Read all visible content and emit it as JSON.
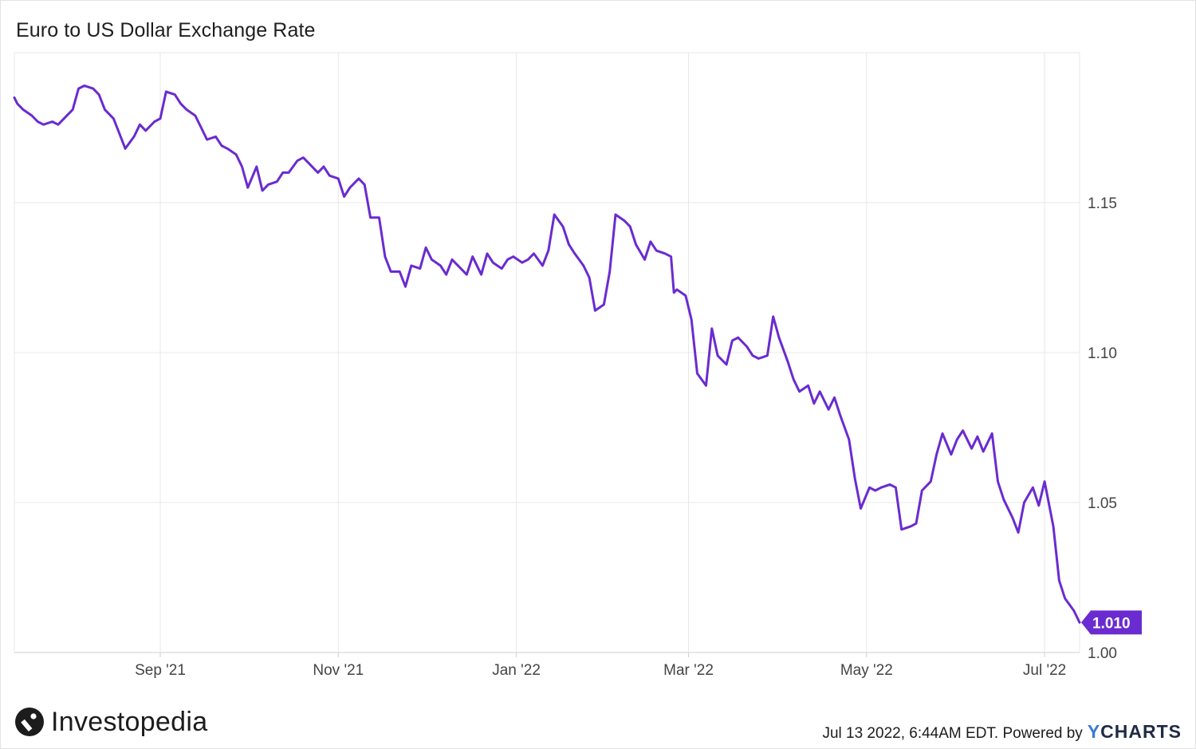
{
  "chart_data": {
    "type": "line",
    "title": "Euro to US Dollar Exchange Rate",
    "xlabel": "",
    "ylabel": "",
    "x_range": [
      "2021-07-13",
      "2022-07-13"
    ],
    "ylim": [
      1.0,
      1.2
    ],
    "grid": true,
    "line_color": "#6a2bd0",
    "x_ticks": [
      {
        "label": "Sep '21",
        "date": "2021-09-01"
      },
      {
        "label": "Nov '21",
        "date": "2021-11-01"
      },
      {
        "label": "Jan '22",
        "date": "2022-01-01"
      },
      {
        "label": "Mar '22",
        "date": "2022-03-01"
      },
      {
        "label": "May '22",
        "date": "2022-05-01"
      },
      {
        "label": "Jul '22",
        "date": "2022-07-01"
      }
    ],
    "y_ticks": [
      {
        "label": "1.00",
        "value": 1.0
      },
      {
        "label": "1.05",
        "value": 1.05
      },
      {
        "label": "1.10",
        "value": 1.1
      },
      {
        "label": "1.15",
        "value": 1.15
      }
    ],
    "last_value_label": "1.010",
    "series": [
      {
        "points": [
          [
            "2021-07-13",
            1.185
          ],
          [
            "2021-07-14",
            1.183
          ],
          [
            "2021-07-16",
            1.181
          ],
          [
            "2021-07-19",
            1.179
          ],
          [
            "2021-07-21",
            1.177
          ],
          [
            "2021-07-23",
            1.176
          ],
          [
            "2021-07-26",
            1.177
          ],
          [
            "2021-07-28",
            1.176
          ],
          [
            "2021-07-30",
            1.178
          ],
          [
            "2021-08-02",
            1.181
          ],
          [
            "2021-08-04",
            1.188
          ],
          [
            "2021-08-06",
            1.189
          ],
          [
            "2021-08-09",
            1.188
          ],
          [
            "2021-08-11",
            1.186
          ],
          [
            "2021-08-13",
            1.181
          ],
          [
            "2021-08-16",
            1.178
          ],
          [
            "2021-08-18",
            1.173
          ],
          [
            "2021-08-20",
            1.168
          ],
          [
            "2021-08-23",
            1.172
          ],
          [
            "2021-08-25",
            1.176
          ],
          [
            "2021-08-27",
            1.174
          ],
          [
            "2021-08-30",
            1.177
          ],
          [
            "2021-09-01",
            1.178
          ],
          [
            "2021-09-03",
            1.187
          ],
          [
            "2021-09-06",
            1.186
          ],
          [
            "2021-09-08",
            1.183
          ],
          [
            "2021-09-10",
            1.181
          ],
          [
            "2021-09-13",
            1.179
          ],
          [
            "2021-09-15",
            1.175
          ],
          [
            "2021-09-17",
            1.171
          ],
          [
            "2021-09-20",
            1.172
          ],
          [
            "2021-09-22",
            1.169
          ],
          [
            "2021-09-24",
            1.168
          ],
          [
            "2021-09-27",
            1.166
          ],
          [
            "2021-09-29",
            1.162
          ],
          [
            "2021-10-01",
            1.155
          ],
          [
            "2021-10-04",
            1.162
          ],
          [
            "2021-10-06",
            1.154
          ],
          [
            "2021-10-08",
            1.156
          ],
          [
            "2021-10-11",
            1.157
          ],
          [
            "2021-10-13",
            1.16
          ],
          [
            "2021-10-15",
            1.16
          ],
          [
            "2021-10-18",
            1.164
          ],
          [
            "2021-10-20",
            1.165
          ],
          [
            "2021-10-22",
            1.163
          ],
          [
            "2021-10-25",
            1.16
          ],
          [
            "2021-10-27",
            1.162
          ],
          [
            "2021-10-29",
            1.159
          ],
          [
            "2021-11-01",
            1.158
          ],
          [
            "2021-11-03",
            1.152
          ],
          [
            "2021-11-05",
            1.155
          ],
          [
            "2021-11-08",
            1.158
          ],
          [
            "2021-11-10",
            1.156
          ],
          [
            "2021-11-12",
            1.145
          ],
          [
            "2021-11-15",
            1.145
          ],
          [
            "2021-11-17",
            1.132
          ],
          [
            "2021-11-19",
            1.127
          ],
          [
            "2021-11-22",
            1.127
          ],
          [
            "2021-11-24",
            1.122
          ],
          [
            "2021-11-26",
            1.129
          ],
          [
            "2021-11-29",
            1.128
          ],
          [
            "2021-12-01",
            1.135
          ],
          [
            "2021-12-03",
            1.131
          ],
          [
            "2021-12-06",
            1.129
          ],
          [
            "2021-12-08",
            1.126
          ],
          [
            "2021-12-10",
            1.131
          ],
          [
            "2021-12-13",
            1.128
          ],
          [
            "2021-12-15",
            1.126
          ],
          [
            "2021-12-17",
            1.132
          ],
          [
            "2021-12-20",
            1.126
          ],
          [
            "2021-12-22",
            1.133
          ],
          [
            "2021-12-24",
            1.13
          ],
          [
            "2021-12-27",
            1.128
          ],
          [
            "2021-12-29",
            1.131
          ],
          [
            "2021-12-31",
            1.132
          ],
          [
            "2022-01-03",
            1.13
          ],
          [
            "2022-01-05",
            1.131
          ],
          [
            "2022-01-07",
            1.133
          ],
          [
            "2022-01-10",
            1.129
          ],
          [
            "2022-01-12",
            1.134
          ],
          [
            "2022-01-14",
            1.146
          ],
          [
            "2022-01-17",
            1.142
          ],
          [
            "2022-01-19",
            1.136
          ],
          [
            "2022-01-21",
            1.133
          ],
          [
            "2022-01-24",
            1.129
          ],
          [
            "2022-01-26",
            1.125
          ],
          [
            "2022-01-28",
            1.114
          ],
          [
            "2022-01-31",
            1.116
          ],
          [
            "2022-02-02",
            1.127
          ],
          [
            "2022-02-04",
            1.146
          ],
          [
            "2022-02-07",
            1.144
          ],
          [
            "2022-02-09",
            1.142
          ],
          [
            "2022-02-11",
            1.136
          ],
          [
            "2022-02-14",
            1.131
          ],
          [
            "2022-02-16",
            1.137
          ],
          [
            "2022-02-18",
            1.134
          ],
          [
            "2022-02-21",
            1.133
          ],
          [
            "2022-02-23",
            1.132
          ],
          [
            "2022-02-24",
            1.12
          ],
          [
            "2022-02-25",
            1.121
          ],
          [
            "2022-02-28",
            1.119
          ],
          [
            "2022-03-02",
            1.111
          ],
          [
            "2022-03-04",
            1.093
          ],
          [
            "2022-03-07",
            1.089
          ],
          [
            "2022-03-09",
            1.108
          ],
          [
            "2022-03-11",
            1.099
          ],
          [
            "2022-03-14",
            1.096
          ],
          [
            "2022-03-16",
            1.104
          ],
          [
            "2022-03-18",
            1.105
          ],
          [
            "2022-03-21",
            1.102
          ],
          [
            "2022-03-23",
            1.099
          ],
          [
            "2022-03-25",
            1.098
          ],
          [
            "2022-03-28",
            1.099
          ],
          [
            "2022-03-30",
            1.112
          ],
          [
            "2022-04-01",
            1.105
          ],
          [
            "2022-04-04",
            1.097
          ],
          [
            "2022-04-06",
            1.091
          ],
          [
            "2022-04-08",
            1.087
          ],
          [
            "2022-04-11",
            1.089
          ],
          [
            "2022-04-13",
            1.083
          ],
          [
            "2022-04-15",
            1.087
          ],
          [
            "2022-04-18",
            1.081
          ],
          [
            "2022-04-20",
            1.085
          ],
          [
            "2022-04-22",
            1.079
          ],
          [
            "2022-04-25",
            1.071
          ],
          [
            "2022-04-27",
            1.058
          ],
          [
            "2022-04-29",
            1.048
          ],
          [
            "2022-05-02",
            1.055
          ],
          [
            "2022-05-04",
            1.054
          ],
          [
            "2022-05-06",
            1.055
          ],
          [
            "2022-05-09",
            1.056
          ],
          [
            "2022-05-11",
            1.055
          ],
          [
            "2022-05-13",
            1.041
          ],
          [
            "2022-05-16",
            1.042
          ],
          [
            "2022-05-18",
            1.043
          ],
          [
            "2022-05-20",
            1.054
          ],
          [
            "2022-05-23",
            1.057
          ],
          [
            "2022-05-25",
            1.066
          ],
          [
            "2022-05-27",
            1.073
          ],
          [
            "2022-05-30",
            1.066
          ],
          [
            "2022-06-01",
            1.071
          ],
          [
            "2022-06-03",
            1.074
          ],
          [
            "2022-06-06",
            1.068
          ],
          [
            "2022-06-08",
            1.072
          ],
          [
            "2022-06-10",
            1.067
          ],
          [
            "2022-06-13",
            1.073
          ],
          [
            "2022-06-15",
            1.057
          ],
          [
            "2022-06-17",
            1.051
          ],
          [
            "2022-06-20",
            1.045
          ],
          [
            "2022-06-22",
            1.04
          ],
          [
            "2022-06-24",
            1.05
          ],
          [
            "2022-06-27",
            1.055
          ],
          [
            "2022-06-29",
            1.049
          ],
          [
            "2022-07-01",
            1.057
          ],
          [
            "2022-07-04",
            1.042
          ],
          [
            "2022-07-06",
            1.024
          ],
          [
            "2022-07-08",
            1.018
          ],
          [
            "2022-07-11",
            1.014
          ],
          [
            "2022-07-13",
            1.01
          ]
        ]
      }
    ]
  },
  "footer": {
    "brand": "Investopedia",
    "timestamp": "Jul 13 2022, 6:44AM EDT. Powered by",
    "ycharts_y": "Y",
    "ycharts_rest": "CHARTS"
  }
}
